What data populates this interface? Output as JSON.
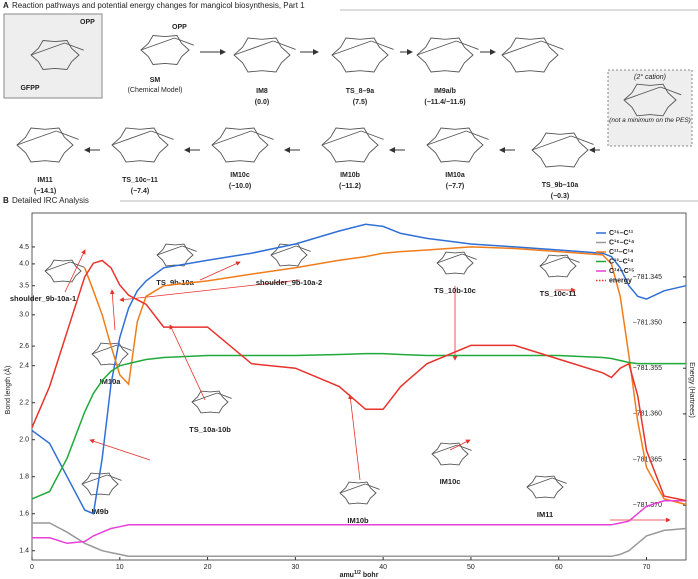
{
  "panel_a": {
    "label": "A",
    "title": "Reaction pathways and potential energy changes for mangicol biosynthesis, Part 1",
    "species": [
      {
        "name": "GFPP"
      },
      {
        "name": "SM",
        "note": "(Chemical Model)"
      },
      {
        "name": "IM8",
        "energy": "(0.0)"
      },
      {
        "name": "TS_8–9a",
        "energy": "(7.5)"
      },
      {
        "name": "IM9a/b",
        "energy": "(−11.4/−11.6)"
      },
      {
        "name": "TS_9b–10a",
        "energy": "(−0.3)"
      },
      {
        "name": "IM10a",
        "energy": "(−7.7)"
      },
      {
        "name": "IM10b",
        "energy": "(−11.2)"
      },
      {
        "name": "IM10c",
        "energy": "(−10.0)"
      },
      {
        "name": "TS_10c–11",
        "energy": "(−7.4)"
      },
      {
        "name": "IM11",
        "energy": "(−14.1)"
      }
    ],
    "notes": [
      "OPP",
      "OPP",
      "(2° cation)",
      "(not a minimum on the PES)"
    ]
  },
  "chart_data": {
    "type": "line",
    "label": "B",
    "title": "Detailed IRC Analysis",
    "x_label": [
      "amu",
      "1/2",
      " bohr"
    ],
    "y_label": "Bond length (Å)",
    "y2_label": "Energy (Hartrees)",
    "xlim": [
      0,
      74.5
    ],
    "xticks": [
      0,
      10,
      20,
      30,
      40,
      50,
      60,
      70
    ],
    "ylim": [
      1.35,
      6.0
    ],
    "y_scale": {
      "type": "linear-then-reciprocal",
      "break": 2.4
    },
    "yticks": [
      1.4,
      1.6,
      1.8,
      {
        "value": 2,
        "label": "2.0"
      },
      2.2,
      2.4,
      2.6,
      {
        "value": 3,
        "label": "3.0"
      },
      3.5,
      {
        "value": 4,
        "label": "4.0"
      },
      4.5
    ],
    "y2lim": [
      -781.376,
      -781.338
    ],
    "y2ticks": [
      {
        "value": -781.345,
        "label": "−781.345"
      },
      {
        "value": -781.35,
        "label": "−781.350"
      },
      {
        "value": -781.355,
        "label": "−781.355"
      },
      {
        "value": -781.36,
        "label": "−781.360"
      },
      {
        "value": -781.365,
        "label": "−781.365"
      },
      {
        "value": -781.37,
        "label": "−781.370"
      }
    ],
    "x": [
      0,
      2,
      4,
      6,
      7,
      8,
      9,
      10,
      11,
      12,
      13,
      15,
      20,
      25,
      30,
      35,
      38,
      40,
      42,
      45,
      50,
      55,
      60,
      65,
      66,
      67,
      68,
      69,
      70,
      72,
      74.5
    ],
    "series": [
      {
        "name": "C¹⁶–C¹¹",
        "color": "#2f6fd6",
        "values": [
          2.05,
          1.98,
          1.8,
          1.62,
          1.6,
          1.9,
          2.3,
          2.7,
          3.1,
          3.4,
          3.6,
          3.9,
          4.1,
          4.3,
          4.6,
          5.1,
          5.4,
          5.3,
          5.0,
          4.8,
          4.6,
          4.5,
          4.4,
          4.3,
          4.2,
          3.9,
          3.5,
          3.3,
          3.25,
          3.4,
          3.5
        ]
      },
      {
        "name": "C¹⁶–C¹⁴",
        "color": "#999999",
        "values": [
          1.55,
          1.55,
          1.5,
          1.44,
          1.42,
          1.4,
          1.39,
          1.38,
          1.37,
          1.37,
          1.37,
          1.37,
          1.37,
          1.37,
          1.37,
          1.37,
          1.37,
          1.37,
          1.37,
          1.37,
          1.37,
          1.37,
          1.37,
          1.37,
          1.37,
          1.38,
          1.4,
          1.44,
          1.48,
          1.51,
          1.52
        ]
      },
      {
        "name": "C¹¹–C¹⁴",
        "color": "#f07d1a",
        "values": [
          null,
          null,
          null,
          3.9,
          3.4,
          3.0,
          2.6,
          2.35,
          2.3,
          2.9,
          3.3,
          3.5,
          3.6,
          3.75,
          3.9,
          4.1,
          4.2,
          4.3,
          4.35,
          4.4,
          4.5,
          4.45,
          4.35,
          4.25,
          4.0,
          3.3,
          2.5,
          2.1,
          1.85,
          1.68,
          1.65
        ]
      },
      {
        "name": "C¹³–C¹⁴",
        "color": "#1faa3a",
        "values": [
          1.68,
          1.72,
          1.9,
          2.15,
          2.25,
          2.32,
          2.37,
          2.4,
          2.42,
          2.44,
          2.46,
          2.48,
          2.5,
          2.5,
          2.5,
          2.51,
          2.52,
          2.52,
          2.51,
          2.5,
          2.5,
          2.5,
          2.5,
          2.48,
          2.47,
          2.45,
          2.43,
          2.42,
          2.42,
          2.42,
          2.42
        ]
      },
      {
        "name": "C¹⁴–C¹⁵",
        "color": "#e83fd8",
        "values": [
          1.47,
          1.47,
          1.44,
          1.45,
          1.48,
          1.5,
          1.52,
          1.53,
          1.54,
          1.54,
          1.54,
          1.54,
          1.54,
          1.54,
          1.54,
          1.54,
          1.54,
          1.54,
          1.54,
          1.54,
          1.54,
          1.54,
          1.54,
          1.54,
          1.54,
          1.55,
          1.56,
          1.6,
          1.64,
          1.67,
          1.67
        ]
      },
      {
        "name": "energy",
        "color": "#e8322b",
        "axis": "y2",
        "values": [
          -781.3615,
          -781.357,
          -781.351,
          -781.345,
          -781.3435,
          -781.3432,
          -781.344,
          -781.3459,
          -781.347,
          -781.3475,
          -781.348,
          -781.3505,
          -781.3505,
          -781.3545,
          -781.355,
          -781.357,
          -781.3595,
          -781.3595,
          -781.357,
          -781.3545,
          -781.3525,
          -781.3525,
          -781.354,
          -781.3555,
          -781.356,
          -781.355,
          -781.3545,
          -781.358,
          -781.364,
          -781.369,
          -781.3695
        ]
      }
    ],
    "annotations": [
      "shoulder_9b-10a-1",
      "TS_9b-10a",
      "shoulder_9b-10a-2",
      "TS_10b-10c",
      "TS_10c-11",
      "IM10a",
      "TS_10a-10b",
      "IM10b",
      "IM10c",
      "IM9b",
      "IM11"
    ]
  }
}
